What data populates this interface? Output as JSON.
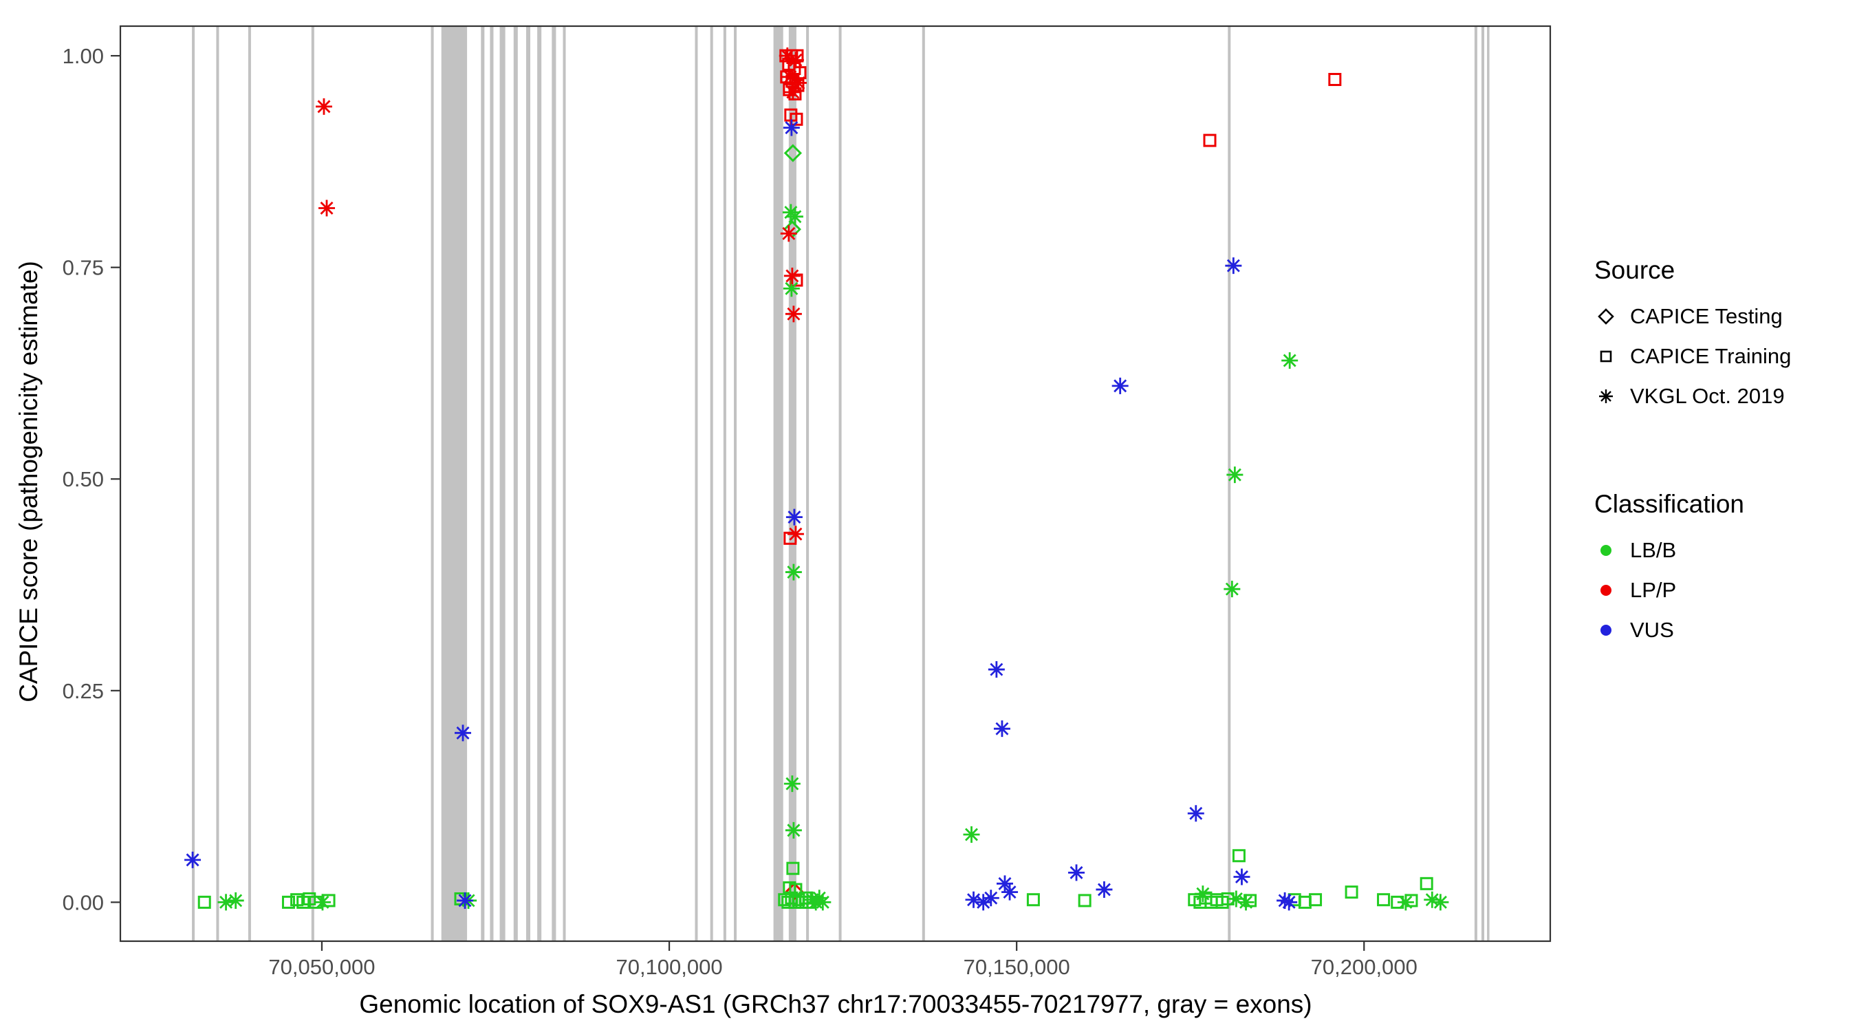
{
  "chart_data": {
    "type": "scatter",
    "title": "",
    "xlabel": "Genomic location of SOX9-AS1 (GRCh37 chr17:70033455-70217977, gray = exons)",
    "ylabel": "CAPICE score (pathogenicity estimate)",
    "xlim": [
      70021000,
      70226800
    ],
    "ylim": [
      -0.046,
      1.035
    ],
    "grid": false,
    "x_ticks": [
      {
        "value": 70050000,
        "label": "70,050,000"
      },
      {
        "value": 70100000,
        "label": "70,100,000"
      },
      {
        "value": 70150000,
        "label": "70,150,000"
      },
      {
        "value": 70200000,
        "label": "70,200,000"
      }
    ],
    "y_ticks": [
      {
        "value": 0.0,
        "label": "0.00"
      },
      {
        "value": 0.25,
        "label": "0.25"
      },
      {
        "value": 0.5,
        "label": "0.50"
      },
      {
        "value": 0.75,
        "label": "0.75"
      },
      {
        "value": 1.0,
        "label": "1.00"
      }
    ],
    "exon_color": "#C2C2C2",
    "exons": [
      [
        70031300,
        70031700
      ],
      [
        70034800,
        70035200
      ],
      [
        70039400,
        70039800
      ],
      [
        70048500,
        70048900
      ],
      [
        70065700,
        70066100
      ],
      [
        70067200,
        70070900
      ],
      [
        70072900,
        70073400
      ],
      [
        70074200,
        70074700
      ],
      [
        70075600,
        70076400
      ],
      [
        70077600,
        70078200
      ],
      [
        70079400,
        70080000
      ],
      [
        70081000,
        70081600
      ],
      [
        70083100,
        70083700
      ],
      [
        70084700,
        70085100
      ],
      [
        70103700,
        70104100
      ],
      [
        70105900,
        70106300
      ],
      [
        70107800,
        70108200
      ],
      [
        70109300,
        70109700
      ],
      [
        70115000,
        70116400
      ],
      [
        70117200,
        70118300
      ],
      [
        70119700,
        70120100
      ],
      [
        70124400,
        70124800
      ],
      [
        70136400,
        70136800
      ],
      [
        70180400,
        70180800
      ],
      [
        70215900,
        70216300
      ],
      [
        70216900,
        70217300
      ],
      [
        70217700,
        70218000
      ]
    ],
    "series": [
      {
        "source": "CAPICE Testing",
        "classification": "LB/B",
        "shape": "diamond",
        "color": "#22CC22",
        "points": [
          [
            70117800,
            0.885
          ],
          [
            70117700,
            0.795
          ]
        ]
      },
      {
        "source": "CAPICE Testing",
        "classification": "LP/P",
        "shape": "diamond",
        "color": "#EE0000",
        "points": [
          [
            70118000,
            0.013
          ]
        ]
      },
      {
        "source": "CAPICE Training",
        "classification": "LB/B",
        "shape": "square",
        "color": "#22CC22",
        "points": [
          [
            70033100,
            0.0
          ],
          [
            70045200,
            0.0
          ],
          [
            70046400,
            0.003
          ],
          [
            70047300,
            0.0
          ],
          [
            70048200,
            0.004
          ],
          [
            70049100,
            0.0
          ],
          [
            70051000,
            0.002
          ],
          [
            70070000,
            0.004
          ],
          [
            70117800,
            0.04
          ],
          [
            70117300,
            0.017
          ],
          [
            70118200,
            0.015
          ],
          [
            70116600,
            0.003
          ],
          [
            70117100,
            0.0
          ],
          [
            70117600,
            0.005
          ],
          [
            70118100,
            0.0
          ],
          [
            70118600,
            0.003
          ],
          [
            70119100,
            0.0
          ],
          [
            70119600,
            0.005
          ],
          [
            70120100,
            0.0
          ],
          [
            70152400,
            0.003
          ],
          [
            70159800,
            0.002
          ],
          [
            70175600,
            0.003
          ],
          [
            70176400,
            0.0
          ],
          [
            70177200,
            0.005
          ],
          [
            70178000,
            0.0
          ],
          [
            70178800,
            0.003
          ],
          [
            70179600,
            0.0
          ],
          [
            70180400,
            0.004
          ],
          [
            70182000,
            0.055
          ],
          [
            70183600,
            0.002
          ],
          [
            70190000,
            0.003
          ],
          [
            70191500,
            0.0
          ],
          [
            70193000,
            0.003
          ],
          [
            70198200,
            0.012
          ],
          [
            70202800,
            0.003
          ],
          [
            70204800,
            0.0
          ],
          [
            70206800,
            0.002
          ],
          [
            70209000,
            0.022
          ]
        ]
      },
      {
        "source": "CAPICE Training",
        "classification": "LP/P",
        "shape": "square",
        "color": "#EE0000",
        "points": [
          [
            70116800,
            1.0
          ],
          [
            70117600,
            1.0
          ],
          [
            70118400,
            1.0
          ],
          [
            70117200,
            0.99
          ],
          [
            70118000,
            0.985
          ],
          [
            70118800,
            0.98
          ],
          [
            70116900,
            0.975
          ],
          [
            70117700,
            0.97
          ],
          [
            70118500,
            0.965
          ],
          [
            70117300,
            0.96
          ],
          [
            70118100,
            0.955
          ],
          [
            70117500,
            0.93
          ],
          [
            70118300,
            0.925
          ],
          [
            70118300,
            0.735
          ],
          [
            70117400,
            0.43
          ],
          [
            70177800,
            0.9
          ],
          [
            70195800,
            0.972
          ]
        ]
      },
      {
        "source": "VKGL Oct. 2019",
        "classification": "LB/B",
        "shape": "asterisk",
        "color": "#22CC22",
        "points": [
          [
            70036200,
            0.0
          ],
          [
            70037600,
            0.002
          ],
          [
            70050100,
            0.0
          ],
          [
            70071100,
            0.002
          ],
          [
            70117500,
            0.815
          ],
          [
            70118100,
            0.81
          ],
          [
            70117600,
            0.725
          ],
          [
            70117900,
            0.39
          ],
          [
            70117700,
            0.14
          ],
          [
            70117900,
            0.085
          ],
          [
            70120600,
            0.003
          ],
          [
            70121100,
            0.0
          ],
          [
            70121600,
            0.005
          ],
          [
            70122100,
            0.0
          ],
          [
            70143500,
            0.08
          ],
          [
            70181400,
            0.505
          ],
          [
            70181000,
            0.37
          ],
          [
            70189300,
            0.64
          ],
          [
            70176800,
            0.01
          ],
          [
            70181600,
            0.004
          ],
          [
            70183000,
            0.0
          ],
          [
            70206000,
            0.0
          ],
          [
            70209800,
            0.003
          ],
          [
            70211000,
            0.0
          ]
        ]
      },
      {
        "source": "VKGL Oct. 2019",
        "classification": "LP/P",
        "shape": "asterisk",
        "color": "#EE0000",
        "points": [
          [
            70050300,
            0.94
          ],
          [
            70050700,
            0.82
          ],
          [
            70117000,
            1.0
          ],
          [
            70118200,
            0.995
          ],
          [
            70117400,
            0.975
          ],
          [
            70118600,
            0.968
          ],
          [
            70117800,
            0.957
          ],
          [
            70117200,
            0.79
          ],
          [
            70117700,
            0.74
          ],
          [
            70117900,
            0.695
          ],
          [
            70118200,
            0.435
          ]
        ]
      },
      {
        "source": "VKGL Oct. 2019",
        "classification": "VUS",
        "shape": "asterisk",
        "color": "#2222DD",
        "points": [
          [
            70031400,
            0.05
          ],
          [
            70070300,
            0.2
          ],
          [
            70070600,
            0.002
          ],
          [
            70117600,
            0.915
          ],
          [
            70118000,
            0.455
          ],
          [
            70147100,
            0.275
          ],
          [
            70147900,
            0.205
          ],
          [
            70164900,
            0.61
          ],
          [
            70158600,
            0.035
          ],
          [
            70162600,
            0.015
          ],
          [
            70175800,
            0.105
          ],
          [
            70181200,
            0.752
          ],
          [
            70182400,
            0.03
          ],
          [
            70143800,
            0.003
          ],
          [
            70145200,
            0.0
          ],
          [
            70146300,
            0.005
          ],
          [
            70148300,
            0.022
          ],
          [
            70149000,
            0.012
          ],
          [
            70188600,
            0.002
          ],
          [
            70189200,
            0.0
          ]
        ]
      }
    ],
    "legend": {
      "source": {
        "title": "Source",
        "items": [
          {
            "label": "CAPICE Testing",
            "shape": "diamond"
          },
          {
            "label": "CAPICE Training",
            "shape": "square"
          },
          {
            "label": "VKGL Oct. 2019",
            "shape": "asterisk"
          }
        ]
      },
      "classification": {
        "title": "Classification",
        "items": [
          {
            "label": "LB/B",
            "color": "#22CC22"
          },
          {
            "label": "LP/P",
            "color": "#EE0000"
          },
          {
            "label": "VUS",
            "color": "#2222DD"
          }
        ]
      }
    }
  }
}
